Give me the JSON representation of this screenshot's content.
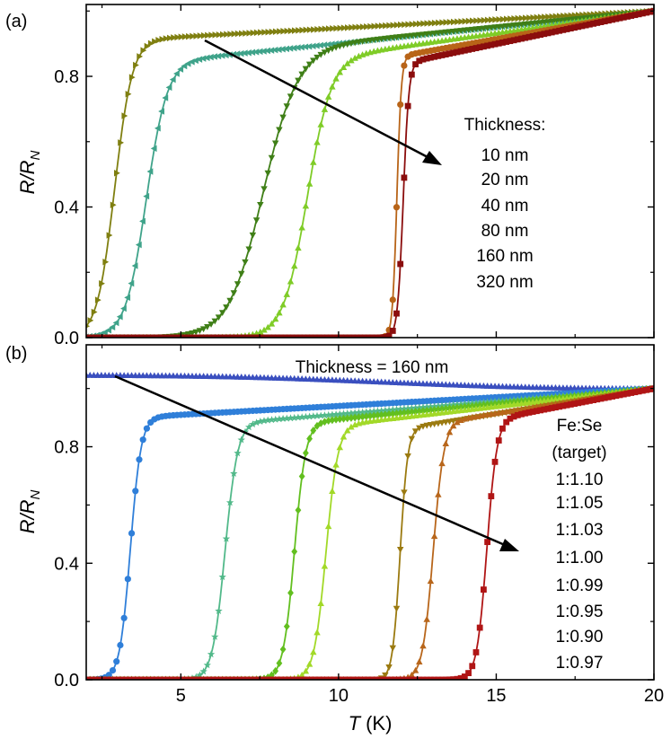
{
  "chart_data": [
    {
      "type": "line",
      "panel_label": "(a)",
      "ylabel_main": "R/R",
      "ylabel_sub": "N",
      "xlim": [
        2,
        20
      ],
      "ylim": [
        0,
        1.02
      ],
      "yticks": [
        "0.0",
        "0.4",
        "0.8"
      ],
      "ytick_values": [
        0,
        0.4,
        0.8
      ],
      "legend_title": "Thickness:",
      "series": [
        {
          "name": "10 nm",
          "color": "#7f7f10",
          "marker": "tri-right",
          "tc": 2.9,
          "w": 0.28,
          "hi": 0.91
        },
        {
          "name": "20 nm",
          "color": "#3fa38a",
          "marker": "tri-left",
          "tc": 3.9,
          "w": 0.33,
          "hi": 0.84
        },
        {
          "name": "40 nm",
          "color": "#3f7f17",
          "marker": "tri-down",
          "tc": 7.6,
          "w": 0.55,
          "hi": 0.88
        },
        {
          "name": "80 nm",
          "color": "#7fcc27",
          "marker": "tri-up",
          "tc": 9.0,
          "w": 0.38,
          "hi": 0.85
        },
        {
          "name": "160 nm",
          "color": "#b86418",
          "marker": "circle",
          "tc": 11.85,
          "w": 0.07,
          "hi": 0.86
        },
        {
          "name": "320 nm",
          "color": "#8b0d0d",
          "marker": "square",
          "tc": 12.05,
          "w": 0.09,
          "hi": 0.84
        }
      ]
    },
    {
      "type": "line",
      "panel_label": "(b)",
      "ylabel_main": "R/R",
      "ylabel_sub": "N",
      "xlabel_main": "T",
      "xlabel_unit": "(K)",
      "xlim": [
        2,
        20
      ],
      "ylim": [
        0,
        1.15
      ],
      "xticks": [
        "5",
        "10",
        "15",
        "20"
      ],
      "xtick_values": [
        5,
        10,
        15,
        20
      ],
      "yticks": [
        "0.0",
        "0.4",
        "0.8"
      ],
      "ytick_values": [
        0,
        0.4,
        0.8
      ],
      "annotation": "Thickness = 160 nm",
      "legend_title_1": "Fe:Se",
      "legend_title_2": "(target)",
      "series": [
        {
          "name": "1:1.10",
          "color": "#3a4fbf",
          "marker": "tri-up",
          "flat": true
        },
        {
          "name": "1:1.05",
          "color": "#2f7fd9",
          "marker": "circle",
          "tc": 3.4,
          "w": 0.17,
          "hi": 0.9
        },
        {
          "name": "1:1.03",
          "color": "#52b98a",
          "marker": "star",
          "tc": 6.4,
          "w": 0.2,
          "hi": 0.88
        },
        {
          "name": "1:1.00",
          "color": "#62bf1f",
          "marker": "diamond",
          "tc": 8.6,
          "w": 0.18,
          "hi": 0.88
        },
        {
          "name": "1:0.99",
          "color": "#a2d928",
          "marker": "tri-up",
          "tc": 9.6,
          "w": 0.19,
          "hi": 0.87
        },
        {
          "name": "1:0.95",
          "color": "#9b7a10",
          "marker": "tri-down",
          "tc": 11.95,
          "w": 0.12,
          "hi": 0.86
        },
        {
          "name": "1:0.90",
          "color": "#b8661b",
          "marker": "tri-up",
          "tc": 13.0,
          "w": 0.17,
          "hi": 0.88
        },
        {
          "name": "1:0.97",
          "color": "#b01515",
          "marker": "square",
          "tc": 14.7,
          "w": 0.16,
          "hi": 0.89
        }
      ]
    }
  ]
}
